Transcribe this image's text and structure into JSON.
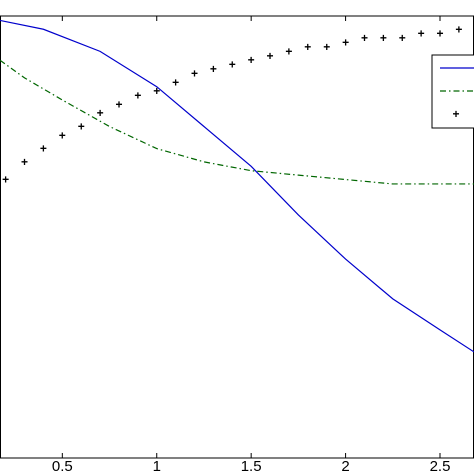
{
  "chart_data": {
    "type": "line",
    "xlim": [
      0.17,
      2.68
    ],
    "xticks": [
      0.5,
      1,
      1.5,
      2,
      2.5
    ],
    "ylim": [
      0,
      1
    ],
    "grid": false,
    "legend": "upper-right",
    "series": [
      {
        "color": "#0000cc",
        "style": "solid",
        "x": [
          0.17,
          0.4,
          0.7,
          1,
          1.25,
          1.5,
          1.75,
          2,
          2.25,
          2.5,
          2.68
        ],
        "values": [
          0.99,
          0.97,
          0.92,
          0.84,
          0.75,
          0.66,
          0.55,
          0.45,
          0.36,
          0.29,
          0.24
        ]
      },
      {
        "color": "#006600",
        "style": "dashdot",
        "x": [
          0.17,
          0.3,
          0.5,
          0.75,
          1,
          1.25,
          1.5,
          1.75,
          2,
          2.25,
          2.5,
          2.68
        ],
        "values": [
          0.9,
          0.86,
          0.81,
          0.75,
          0.7,
          0.67,
          0.65,
          0.64,
          0.63,
          0.62,
          0.62,
          0.62
        ]
      },
      {
        "color": "#ff0000",
        "style": "dotted",
        "x": [
          0.2,
          0.3,
          0.4,
          0.5,
          0.6,
          0.7,
          0.8,
          0.9,
          1.0,
          1.1,
          1.2,
          1.3,
          1.4,
          1.5,
          1.6,
          1.7,
          1.8,
          1.9,
          2.0,
          2.1,
          2.2,
          2.3,
          2.4,
          2.5,
          2.6
        ],
        "values": [
          0.63,
          0.67,
          0.7,
          0.73,
          0.75,
          0.78,
          0.8,
          0.82,
          0.83,
          0.85,
          0.87,
          0.88,
          0.89,
          0.9,
          0.91,
          0.92,
          0.93,
          0.93,
          0.94,
          0.95,
          0.95,
          0.95,
          0.96,
          0.96,
          0.97
        ]
      }
    ]
  }
}
